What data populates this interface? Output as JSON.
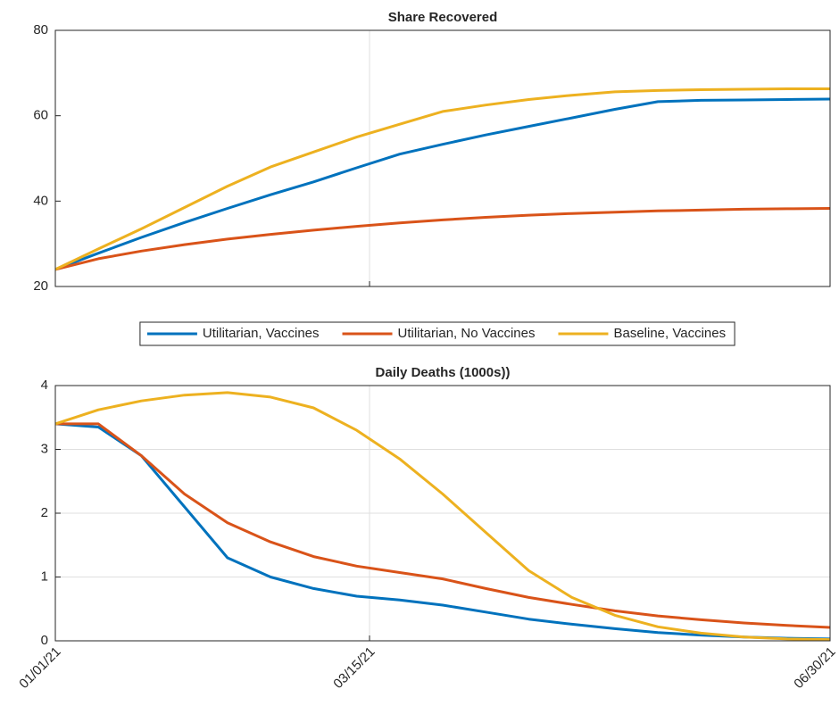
{
  "chart_data": [
    {
      "type": "line",
      "title": "Share Recovered",
      "x": [
        "01/01/21",
        "01/11/21",
        "01/21/21",
        "01/31/21",
        "02/10/21",
        "02/20/21",
        "03/02/21",
        "03/12/21",
        "03/22/21",
        "04/01/21",
        "04/11/21",
        "04/21/21",
        "05/01/21",
        "05/11/21",
        "05/21/21",
        "05/31/21",
        "06/10/21",
        "06/20/21",
        "06/30/21"
      ],
      "xlim": [
        "01/01/21",
        "06/30/21"
      ],
      "ylim": [
        20,
        80
      ],
      "yticks": [
        20,
        40,
        60,
        80
      ],
      "grid": "x",
      "legend": "bottom",
      "series": [
        {
          "name": "Utilitarian, Vaccines",
          "color": "#0072bd",
          "values": [
            24,
            27.8,
            31.5,
            35,
            38.3,
            41.5,
            44.5,
            47.8,
            51,
            53.3,
            55.5,
            57.5,
            59.5,
            61.5,
            63.3,
            63.6,
            63.7,
            63.8,
            63.9
          ]
        },
        {
          "name": "Utilitarian, No Vaccines",
          "color": "#d95319",
          "values": [
            24,
            26.5,
            28.3,
            29.8,
            31.1,
            32.2,
            33.2,
            34.1,
            34.9,
            35.6,
            36.2,
            36.7,
            37.1,
            37.4,
            37.7,
            37.9,
            38.1,
            38.2,
            38.3
          ]
        },
        {
          "name": "Baseline, Vaccines",
          "color": "#edb120",
          "values": [
            24,
            28.8,
            33.5,
            38.5,
            43.5,
            48,
            51.5,
            55,
            58,
            61,
            62.5,
            63.8,
            64.8,
            65.6,
            65.9,
            66.1,
            66.2,
            66.3,
            66.3
          ]
        }
      ]
    },
    {
      "type": "line",
      "title": "Daily Deaths (1000s))",
      "x": [
        "01/01/21",
        "01/11/21",
        "01/21/21",
        "01/31/21",
        "02/10/21",
        "02/20/21",
        "03/02/21",
        "03/12/21",
        "03/22/21",
        "04/01/21",
        "04/11/21",
        "04/21/21",
        "05/01/21",
        "05/11/21",
        "05/21/21",
        "05/31/21",
        "06/10/21",
        "06/20/21",
        "06/30/21"
      ],
      "xlim": [
        "01/01/21",
        "06/30/21"
      ],
      "xticks": [
        "01/01/21",
        "03/15/21",
        "06/30/21"
      ],
      "ylim": [
        0,
        4
      ],
      "yticks": [
        0,
        1,
        2,
        3,
        4
      ],
      "grid": "both",
      "series": [
        {
          "name": "Utilitarian, Vaccines",
          "color": "#0072bd",
          "values": [
            3.4,
            3.35,
            2.9,
            2.1,
            1.3,
            1.0,
            0.82,
            0.7,
            0.64,
            0.56,
            0.45,
            0.34,
            0.26,
            0.19,
            0.13,
            0.09,
            0.06,
            0.04,
            0.03
          ]
        },
        {
          "name": "Utilitarian, No Vaccines",
          "color": "#d95319",
          "values": [
            3.4,
            3.4,
            2.9,
            2.3,
            1.85,
            1.55,
            1.32,
            1.17,
            1.07,
            0.97,
            0.82,
            0.68,
            0.57,
            0.47,
            0.39,
            0.33,
            0.28,
            0.24,
            0.21
          ]
        },
        {
          "name": "Baseline, Vaccines",
          "color": "#edb120",
          "values": [
            3.4,
            3.62,
            3.76,
            3.85,
            3.89,
            3.82,
            3.65,
            3.3,
            2.85,
            2.3,
            1.7,
            1.1,
            0.68,
            0.4,
            0.22,
            0.12,
            0.06,
            0.03,
            0.02
          ]
        }
      ]
    }
  ]
}
